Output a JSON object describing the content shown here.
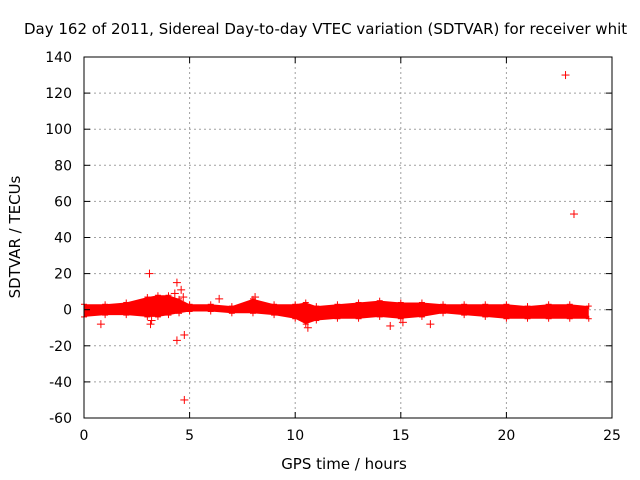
{
  "chart_data": {
    "type": "scatter",
    "title": "Day 162 of 2011, Sidereal Day-to-day VTEC variation (SDTVAR) for receiver whit",
    "xlabel": "GPS time / hours",
    "ylabel": "SDTVAR / TECUs",
    "xlim": [
      0,
      25
    ],
    "ylim": [
      -60,
      140
    ],
    "xticks": [
      0,
      5,
      10,
      15,
      20,
      25
    ],
    "xtick_labels": [
      "0",
      "5",
      "10",
      "15",
      "20",
      "25"
    ],
    "yticks": [
      -60,
      -40,
      -20,
      0,
      20,
      40,
      60,
      80,
      100,
      120,
      140
    ],
    "ytick_labels": [
      "-60",
      "-40",
      "-20",
      "0",
      "20",
      "40",
      "60",
      "80",
      "100",
      "120",
      "140"
    ],
    "grid": true,
    "marker": "+",
    "color": "#ff0000",
    "series": [
      {
        "name": "SDTVAR",
        "dense_band": [
          {
            "x": 0.0,
            "ymin": -4,
            "ymax": 3
          },
          {
            "x": 1.0,
            "ymin": -3,
            "ymax": 3
          },
          {
            "x": 2.0,
            "ymin": -3,
            "ymax": 4
          },
          {
            "x": 3.0,
            "ymin": -4,
            "ymax": 7
          },
          {
            "x": 3.5,
            "ymin": -4,
            "ymax": 8
          },
          {
            "x": 4.0,
            "ymin": -3,
            "ymax": 8
          },
          {
            "x": 4.5,
            "ymin": -2,
            "ymax": 6
          },
          {
            "x": 5.0,
            "ymin": -1,
            "ymax": 3
          },
          {
            "x": 6.0,
            "ymin": -1,
            "ymax": 3
          },
          {
            "x": 7.0,
            "ymin": -2,
            "ymax": 2
          },
          {
            "x": 8.0,
            "ymin": -2,
            "ymax": 6
          },
          {
            "x": 9.0,
            "ymin": -3,
            "ymax": 3
          },
          {
            "x": 10.0,
            "ymin": -5,
            "ymax": 3
          },
          {
            "x": 10.5,
            "ymin": -8,
            "ymax": 4
          },
          {
            "x": 11.0,
            "ymin": -6,
            "ymax": 2
          },
          {
            "x": 12.0,
            "ymin": -5,
            "ymax": 3
          },
          {
            "x": 13.0,
            "ymin": -5,
            "ymax": 4
          },
          {
            "x": 14.0,
            "ymin": -4,
            "ymax": 5
          },
          {
            "x": 15.0,
            "ymin": -5,
            "ymax": 4
          },
          {
            "x": 16.0,
            "ymin": -4,
            "ymax": 4
          },
          {
            "x": 17.0,
            "ymin": -2,
            "ymax": 3
          },
          {
            "x": 18.0,
            "ymin": -3,
            "ymax": 3
          },
          {
            "x": 19.0,
            "ymin": -4,
            "ymax": 3
          },
          {
            "x": 20.0,
            "ymin": -5,
            "ymax": 3
          },
          {
            "x": 21.0,
            "ymin": -5,
            "ymax": 2
          },
          {
            "x": 22.0,
            "ymin": -5,
            "ymax": 3
          },
          {
            "x": 23.0,
            "ymin": -5,
            "ymax": 3
          },
          {
            "x": 23.9,
            "ymin": -5,
            "ymax": 2
          }
        ],
        "points": [
          {
            "x": 22.8,
            "y": 130
          },
          {
            "x": 23.2,
            "y": 53
          },
          {
            "x": 3.1,
            "y": 20
          },
          {
            "x": 4.4,
            "y": 15
          },
          {
            "x": 4.6,
            "y": 11
          },
          {
            "x": 4.3,
            "y": 9
          },
          {
            "x": 4.7,
            "y": 7
          },
          {
            "x": 3.2,
            "y": -6
          },
          {
            "x": 3.15,
            "y": -8
          },
          {
            "x": 4.4,
            "y": -17
          },
          {
            "x": 4.75,
            "y": -14
          },
          {
            "x": 4.75,
            "y": -50
          },
          {
            "x": 0.8,
            "y": -8
          },
          {
            "x": 6.4,
            "y": 6
          },
          {
            "x": 10.6,
            "y": -10
          },
          {
            "x": 14.5,
            "y": -9
          },
          {
            "x": 15.1,
            "y": -7
          },
          {
            "x": 16.4,
            "y": -8
          },
          {
            "x": 8.1,
            "y": 7
          }
        ]
      }
    ]
  }
}
